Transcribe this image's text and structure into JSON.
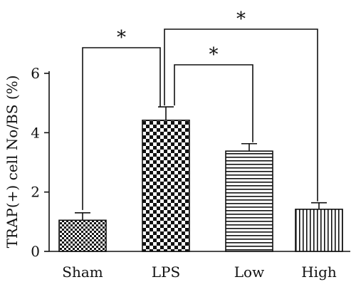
{
  "chart_data": {
    "type": "bar",
    "title": "",
    "xlabel": "",
    "ylabel": "TRAP(+) cell No/BS (%)",
    "categories": [
      "Sham",
      "LPS",
      "Low",
      "High"
    ],
    "values": [
      1.05,
      4.42,
      3.38,
      1.42
    ],
    "error": [
      0.25,
      0.45,
      0.25,
      0.22
    ],
    "ylim": [
      0,
      6
    ],
    "yticks": [
      "0",
      "2",
      "4",
      "6"
    ],
    "grid": false,
    "legend": "none",
    "bar_fills": [
      "fine-checker",
      "coarse-checker",
      "horizontal-lines",
      "vertical-lines"
    ],
    "significance": [
      {
        "from": "Sham",
        "to": "LPS",
        "label": "*"
      },
      {
        "from": "LPS",
        "to": "Low",
        "label": "*"
      },
      {
        "from": "LPS",
        "to": "High",
        "label": "*"
      }
    ],
    "colors": {
      "ink": "#111111",
      "background": "#ffffff"
    }
  }
}
